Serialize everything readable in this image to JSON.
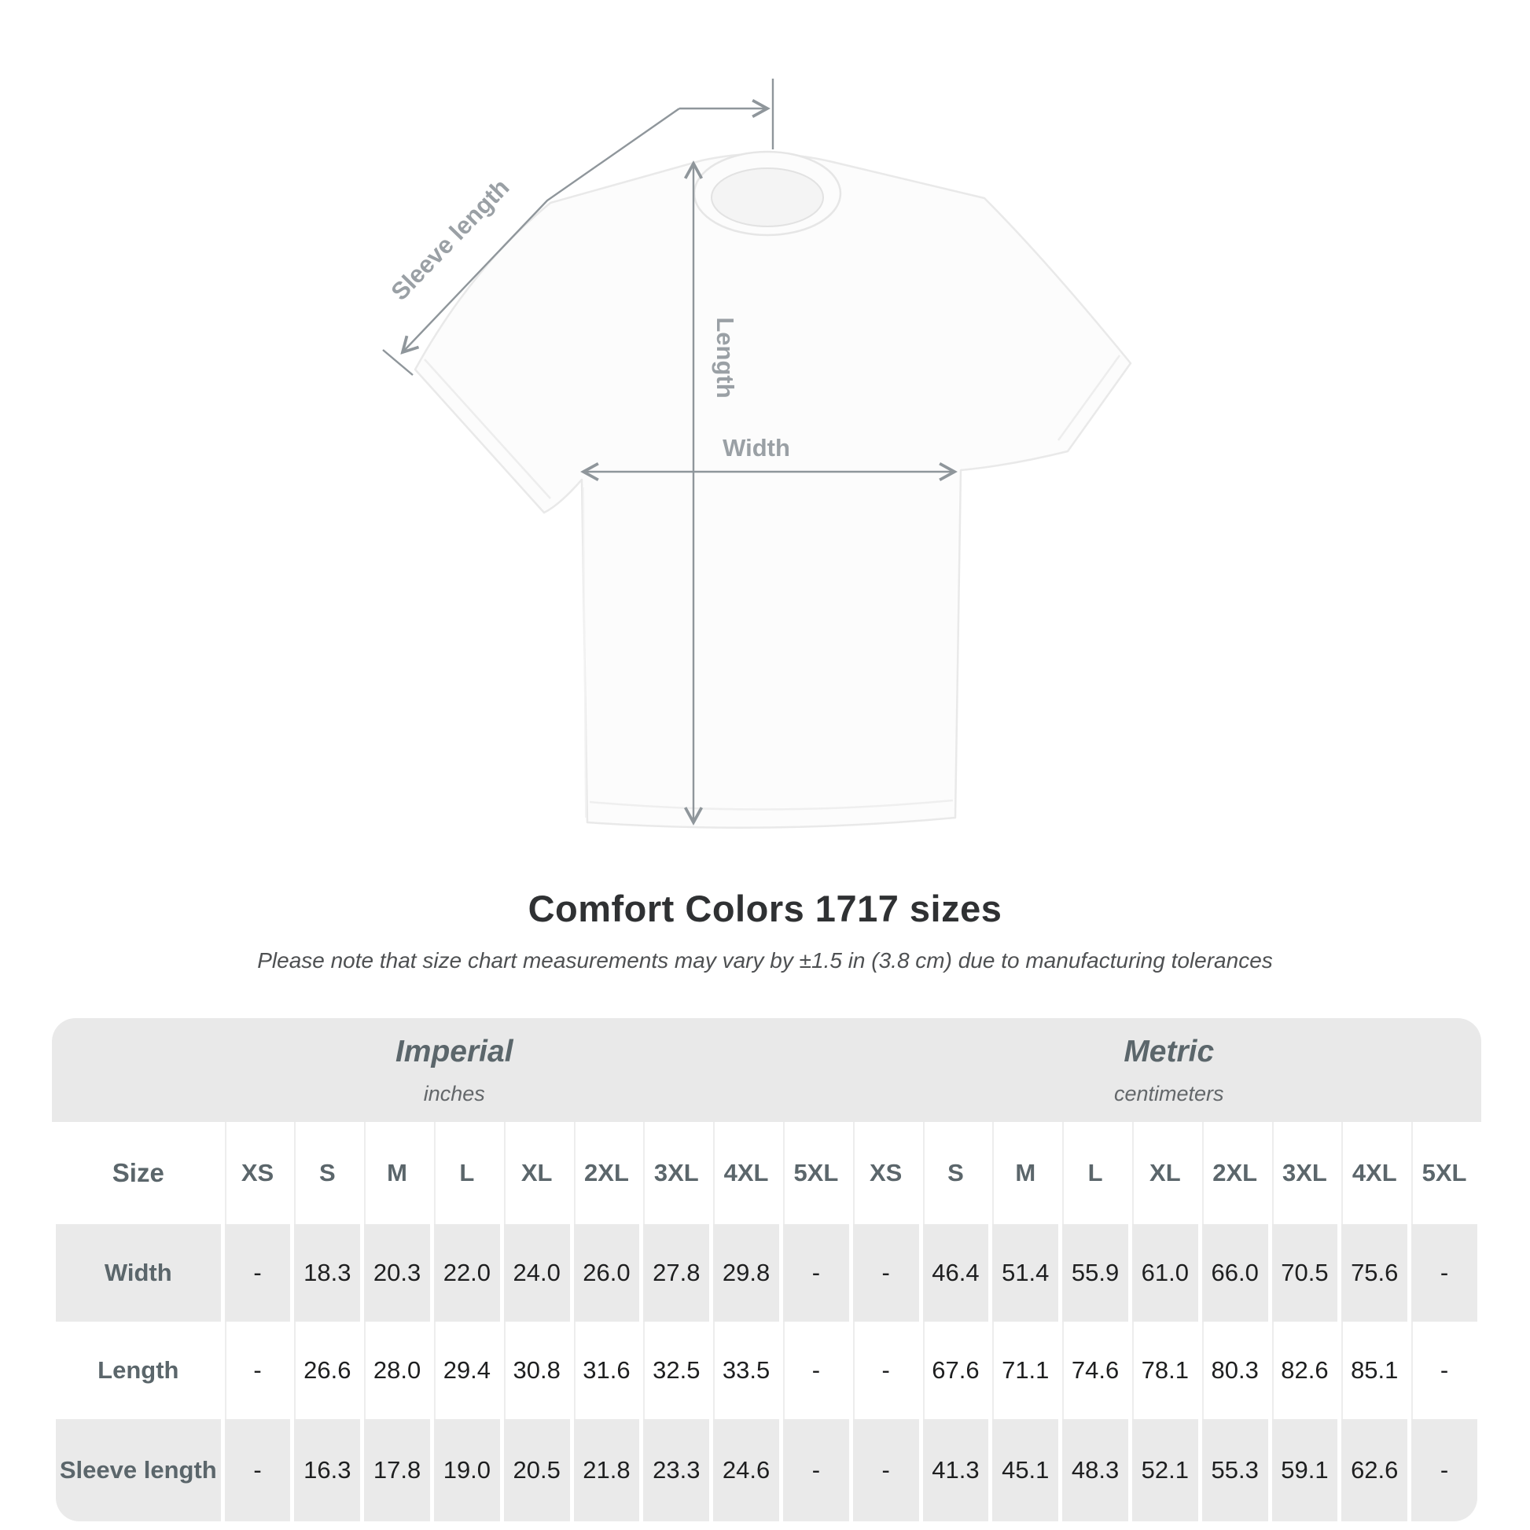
{
  "diagram": {
    "sleeve_label": "Sleeve length",
    "length_label": "Length",
    "width_label": "Width",
    "arrow_color": "#8f969b",
    "label_color": "#9aa0a5",
    "shirt_fill": "#fcfcfc",
    "shirt_outline": "#e9e9e9"
  },
  "title": "Comfort Colors 1717 sizes",
  "subtitle": "Please note that size chart measurements may vary by ±1.5 in (3.8 cm) due to manufacturing tolerances",
  "chart_data": {
    "type": "table",
    "title": "Comfort Colors 1717 sizes",
    "groups": [
      {
        "label": "Imperial",
        "sublabel": "inches"
      },
      {
        "label": "Metric",
        "sublabel": "centimeters"
      }
    ],
    "size_header": "Size",
    "sizes": [
      "XS",
      "S",
      "M",
      "L",
      "XL",
      "2XL",
      "3XL",
      "4XL",
      "5XL"
    ],
    "rows": [
      {
        "label": "Width",
        "imperial": [
          "-",
          "18.3",
          "20.3",
          "22.0",
          "24.0",
          "26.0",
          "27.8",
          "29.8",
          "-"
        ],
        "metric": [
          "-",
          "46.4",
          "51.4",
          "55.9",
          "61.0",
          "66.0",
          "70.5",
          "75.6",
          "-"
        ]
      },
      {
        "label": "Length",
        "imperial": [
          "-",
          "26.6",
          "28.0",
          "29.4",
          "30.8",
          "31.6",
          "32.5",
          "33.5",
          "-"
        ],
        "metric": [
          "-",
          "67.6",
          "71.1",
          "74.6",
          "78.1",
          "80.3",
          "82.6",
          "85.1",
          "-"
        ]
      },
      {
        "label": "Sleeve length",
        "imperial": [
          "-",
          "16.3",
          "17.8",
          "19.0",
          "20.5",
          "21.8",
          "23.3",
          "24.6",
          "-"
        ],
        "metric": [
          "-",
          "41.3",
          "45.1",
          "48.3",
          "52.1",
          "55.3",
          "59.1",
          "62.6",
          "-"
        ]
      }
    ]
  },
  "colors": {
    "table_band": "#e9e9e9",
    "row_gray": "#eaeaea",
    "header_text": "#5b666b",
    "value_text": "#1e1f20",
    "title_text": "#2f3133"
  }
}
